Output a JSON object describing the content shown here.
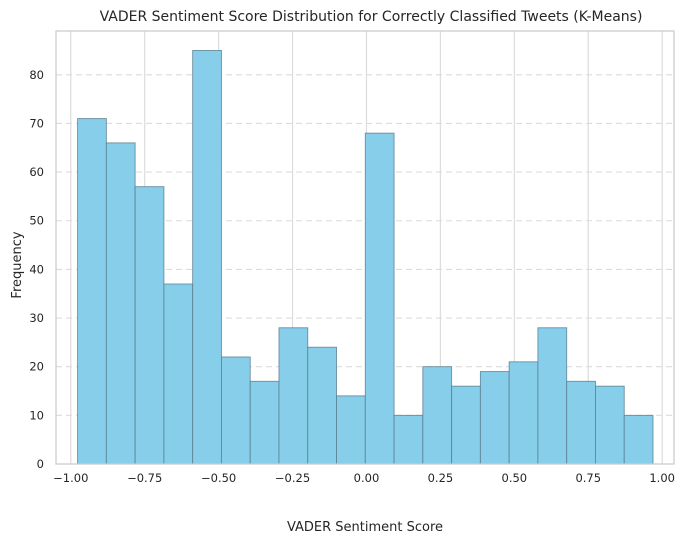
{
  "chart_data": {
    "type": "bar",
    "title": "VADER Sentiment Score Distribution for Correctly Classified Tweets (K-Means)",
    "xlabel": "VADER Sentiment Score",
    "ylabel": "Frequency",
    "bins": {
      "edges": [
        -0.977,
        -0.8797,
        -0.7824,
        -0.6851,
        -0.5878,
        -0.4905,
        -0.3932,
        -0.2959,
        -0.1986,
        -0.1013,
        -0.004,
        0.0933,
        0.1906,
        0.2879,
        0.3852,
        0.4825,
        0.5798,
        0.6771,
        0.7744,
        0.8717,
        0.969
      ],
      "counts": [
        71,
        66,
        57,
        37,
        85,
        22,
        17,
        28,
        24,
        14,
        68,
        10,
        20,
        16,
        19,
        21,
        28,
        17,
        16,
        10
      ]
    },
    "xlim": [
      -1.05,
      1.04
    ],
    "ylim": [
      0,
      89
    ],
    "xticks": [
      -1.0,
      -0.75,
      -0.5,
      -0.25,
      0.0,
      0.25,
      0.5,
      0.75,
      1.0
    ],
    "xtick_labels": [
      "−1.00",
      "−0.75",
      "−0.50",
      "−0.25",
      "0.00",
      "0.25",
      "0.50",
      "0.75",
      "1.00"
    ],
    "yticks": [
      0,
      10,
      20,
      30,
      40,
      50,
      60,
      70,
      80
    ],
    "ytick_labels": [
      "0",
      "10",
      "20",
      "30",
      "40",
      "50",
      "60",
      "70",
      "80"
    ],
    "grid": {
      "x": "solid",
      "y": "dashed"
    },
    "colors": {
      "bar_fill": "#87CEEB",
      "bar_edge": "#5a7f8f",
      "grid": "#dcdcdc",
      "frame": "#cccccc"
    }
  }
}
